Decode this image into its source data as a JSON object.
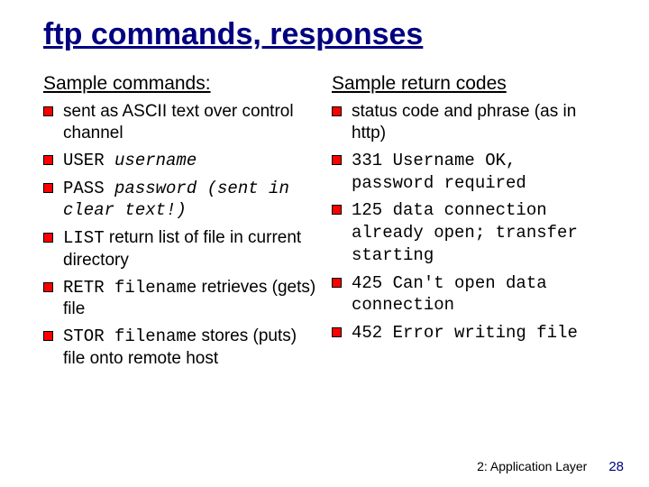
{
  "colors": {
    "title_color": "#000080",
    "bullet_fill": "#ff0000",
    "bullet_border": "#000000",
    "text_color": "#000000",
    "background": "#ffffff",
    "page_num_color": "#000080"
  },
  "typography": {
    "title_fontsize_pt": 26,
    "heading_fontsize_pt": 16,
    "body_fontsize_pt": 14,
    "footer_fontsize_pt": 10,
    "font_family_body": "Comic Sans MS",
    "font_family_mono": "Courier New"
  },
  "title": "ftp commands, responses",
  "left": {
    "heading": "Sample commands:",
    "items": [
      {
        "html": "sent as ASCII text over control channel"
      },
      {
        "html": "<span class='mono'>USER <i>username</i></span>"
      },
      {
        "html": "<span class='mono'>PASS <i>password (sent in clear text!)</i></span>"
      },
      {
        "html": "<span class='mono'>LIST</span> return list of file in current directory"
      },
      {
        "html": "<span class='mono'>RETR filename</span> retrieves (gets) file"
      },
      {
        "html": "<span class='mono'>STOR filename</span> stores (puts) file onto remote host"
      }
    ]
  },
  "right": {
    "heading": "Sample return codes",
    "items": [
      {
        "html": "status code and phrase (as in http)"
      },
      {
        "html": "<span class='mono'>331 Username OK, password required</span>"
      },
      {
        "html": "<span class='mono'>125 data connection already open; transfer starting</span>"
      },
      {
        "html": "<span class='mono'>425 Can't open data connection</span>"
      },
      {
        "html": "<span class='mono'>452 Error writing file</span>"
      }
    ]
  },
  "footer": {
    "chapter": "2: Application Layer",
    "page": "28"
  }
}
